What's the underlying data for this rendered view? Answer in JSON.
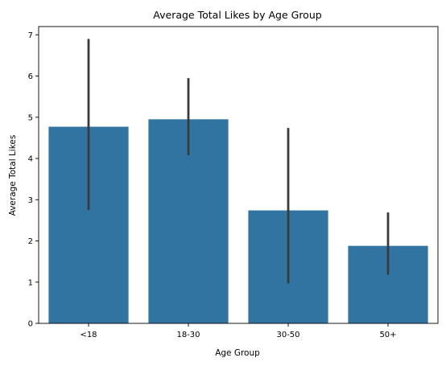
{
  "chart_data": {
    "type": "bar",
    "title": "Average Total Likes by Age Group",
    "xlabel": "Age Group",
    "ylabel": "Average Total Likes",
    "categories": [
      "<18",
      "18-30",
      "30-50",
      "50+"
    ],
    "values": [
      4.77,
      4.95,
      2.74,
      1.88
    ],
    "error_bars": [
      {
        "low": 2.75,
        "high": 6.9
      },
      {
        "low": 4.08,
        "high": 5.95
      },
      {
        "low": 0.97,
        "high": 4.74
      },
      {
        "low": 1.18,
        "high": 2.69
      }
    ],
    "ylim": [
      0,
      7.2
    ],
    "yticks": [
      0,
      1,
      2,
      3,
      4,
      5,
      6,
      7
    ],
    "bar_color": "#3274a1",
    "error_color": "#3a3a3a",
    "grid": false,
    "legend": "none"
  }
}
